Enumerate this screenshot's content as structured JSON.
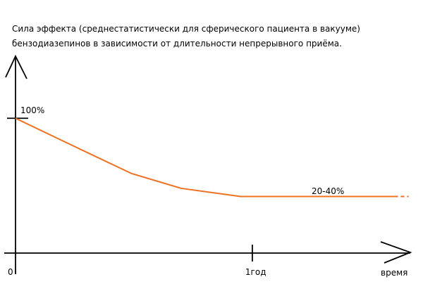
{
  "chart_data": {
    "type": "line",
    "title": [
      "Сила эффекта (среднестатистически для сферического пациента в вакууме)",
      "бензодиазепинов в зависимости от длительности непрерывного приёма."
    ],
    "x_label": "время",
    "series": [
      {
        "color": "#f07020",
        "x": [
          0,
          0.25,
          0.49,
          0.7,
          0.95,
          1.6
        ],
        "values": [
          100,
          79,
          59,
          48,
          42,
          42
        ]
      },
      {
        "color": "#f07020",
        "dashed": true,
        "x": [
          1.6,
          1.66
        ],
        "values": [
          42,
          42
        ]
      }
    ],
    "annotation": "20-40%",
    "xlim": [
      0,
      1.67
    ],
    "xticks": [
      0,
      {
        "value": 1,
        "label": "1год"
      }
    ],
    "ylim": [
      0,
      146
    ],
    "yticks": [
      {
        "value": 100,
        "label": "100%"
      }
    ]
  }
}
